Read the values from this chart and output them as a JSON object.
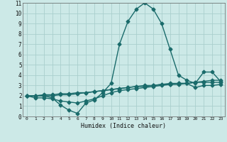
{
  "title": "",
  "xlabel": "Humidex (Indice chaleur)",
  "bg_color": "#cce9e7",
  "grid_color": "#aacfcd",
  "line_color": "#1a6b6b",
  "markersize": 2.5,
  "linewidth": 1.0,
  "xlim": [
    -0.5,
    23.5
  ],
  "ylim": [
    0,
    11
  ],
  "xticks": [
    0,
    1,
    2,
    3,
    4,
    5,
    6,
    7,
    8,
    9,
    10,
    11,
    12,
    13,
    14,
    15,
    16,
    17,
    18,
    19,
    20,
    21,
    22,
    23
  ],
  "yticks": [
    0,
    1,
    2,
    3,
    4,
    5,
    6,
    7,
    8,
    9,
    10,
    11
  ],
  "series": [
    [
      2.0,
      2.0,
      2.0,
      1.8,
      1.1,
      0.6,
      0.3,
      1.3,
      1.6,
      2.3,
      3.2,
      7.0,
      9.2,
      10.4,
      11.0,
      10.4,
      9.0,
      6.5,
      4.0,
      3.5,
      3.2,
      4.3,
      4.3,
      3.4
    ],
    [
      2.0,
      1.8,
      1.8,
      1.7,
      1.5,
      1.4,
      1.3,
      1.5,
      1.7,
      2.0,
      2.3,
      2.5,
      2.6,
      2.7,
      2.8,
      2.9,
      3.0,
      3.1,
      3.1,
      3.2,
      3.3,
      3.4,
      3.5,
      3.5
    ],
    [
      2.0,
      2.0,
      2.1,
      2.1,
      2.2,
      2.2,
      2.3,
      2.3,
      2.4,
      2.5,
      2.6,
      2.7,
      2.8,
      2.9,
      3.0,
      3.0,
      3.1,
      3.1,
      3.2,
      3.2,
      3.3,
      3.3,
      3.3,
      3.3
    ],
    [
      2.0,
      2.0,
      2.0,
      2.0,
      2.1,
      2.1,
      2.2,
      2.3,
      2.4,
      2.5,
      2.6,
      2.7,
      2.8,
      2.9,
      2.9,
      3.0,
      3.1,
      3.2,
      3.2,
      3.2,
      2.8,
      3.0,
      3.0,
      3.1
    ]
  ]
}
